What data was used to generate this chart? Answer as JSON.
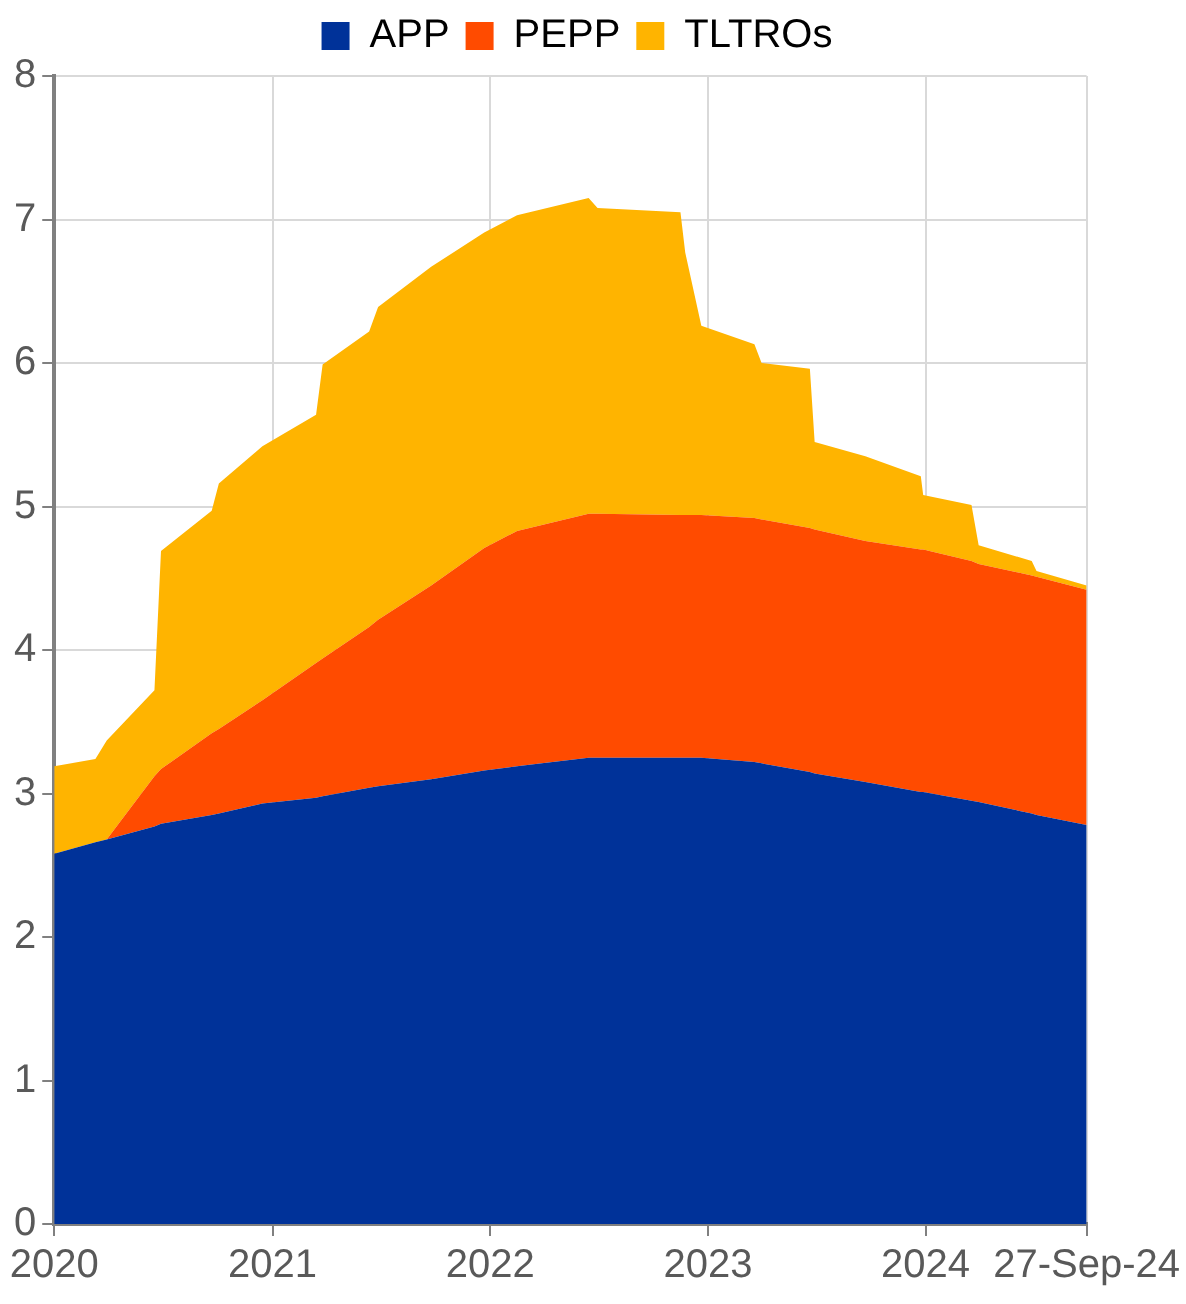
{
  "chart_data": {
    "type": "area",
    "stacked": true,
    "legend": "top",
    "grid": true,
    "x": [
      "2020-01-01",
      "2020-03-10",
      "2020-03-29",
      "2020-06-17",
      "2020-06-28",
      "2020-09-21",
      "2020-10-03",
      "2020-12-15",
      "2021-03-15",
      "2021-03-26",
      "2021-06-12",
      "2021-06-27",
      "2021-09-24",
      "2021-12-22",
      "2022-02-15",
      "2022-06-15",
      "2022-06-30",
      "2022-11-16",
      "2022-11-24",
      "2022-12-21",
      "2023-03-20",
      "2023-04-01",
      "2023-06-21",
      "2023-06-29",
      "2023-09-22",
      "2023-12-24",
      "2023-12-28",
      "2024-03-18",
      "2024-03-30",
      "2024-06-27",
      "2024-07-05",
      "2024-09-27"
    ],
    "series": [
      {
        "name": "APP",
        "color": "#003299",
        "values": [
          2.58,
          2.66,
          2.68,
          2.77,
          2.79,
          2.85,
          2.86,
          2.93,
          2.97,
          2.98,
          3.04,
          3.05,
          3.1,
          3.16,
          3.19,
          3.25,
          3.25,
          3.25,
          3.25,
          3.25,
          3.22,
          3.21,
          3.15,
          3.14,
          3.08,
          3.01,
          3.01,
          2.95,
          2.94,
          2.86,
          2.85,
          2.78
        ]
      },
      {
        "name": "PEPP",
        "color": "#ff4b00",
        "values": [
          0,
          0,
          0,
          0.35,
          0.38,
          0.57,
          0.59,
          0.72,
          0.94,
          0.96,
          1.12,
          1.16,
          1.35,
          1.55,
          1.64,
          1.7,
          1.7,
          1.69,
          1.69,
          1.69,
          1.7,
          1.7,
          1.7,
          1.7,
          1.68,
          1.69,
          1.69,
          1.67,
          1.66,
          1.66,
          1.66,
          1.64
        ]
      },
      {
        "name": "TLTROs",
        "color": "#ffb400",
        "values": [
          0.61,
          0.58,
          0.69,
          0.6,
          1.52,
          1.55,
          1.71,
          1.77,
          1.73,
          2.05,
          2.06,
          2.18,
          2.22,
          2.2,
          2.2,
          2.2,
          2.13,
          2.11,
          1.83,
          1.32,
          1.21,
          1.09,
          1.11,
          0.61,
          0.59,
          0.51,
          0.38,
          0.39,
          0.13,
          0.1,
          0.04,
          0.03
        ]
      }
    ],
    "xlim": [
      "2020-01-01",
      "2024-09-27"
    ],
    "xticks": [
      {
        "value": "2020",
        "label": "2020"
      },
      {
        "value": "2021",
        "label": "2021"
      },
      {
        "value": "2022",
        "label": "2022"
      },
      {
        "value": "2023",
        "label": "2023"
      },
      {
        "value": "2024",
        "label": "2024"
      },
      {
        "value": "2024-09-27",
        "label": "27-Sep-24"
      }
    ],
    "ylim": [
      0,
      8
    ],
    "yticks": [
      0,
      1,
      2,
      3,
      4,
      5,
      6,
      7,
      8
    ]
  }
}
